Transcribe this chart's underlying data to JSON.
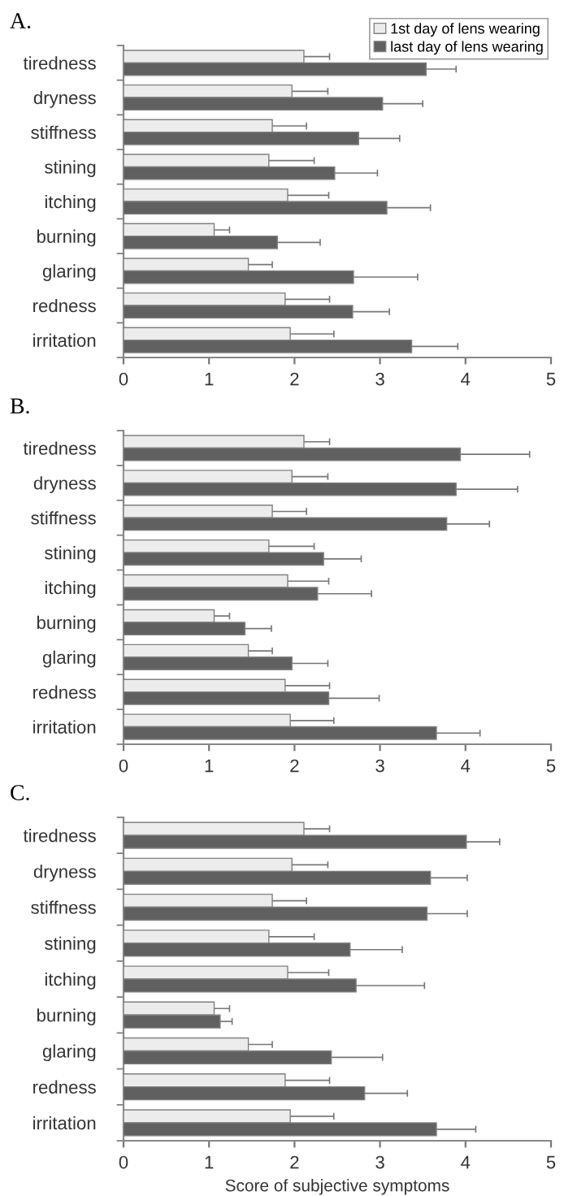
{
  "chart_data": [
    {
      "type": "bar",
      "orientation": "horizontal",
      "title": "A.",
      "categories": [
        "tiredness",
        "dryness",
        "stiffness",
        "stining",
        "itching",
        "burning",
        "glaring",
        "redness",
        "irritation"
      ],
      "xlim": [
        0,
        5
      ],
      "xticks": [
        0,
        1,
        2,
        3,
        4,
        5
      ],
      "grid": false,
      "legend": "top right",
      "series": [
        {
          "name": "1st day of lens wearing",
          "color": "#ececec",
          "values": [
            2.11,
            1.97,
            1.74,
            1.7,
            1.92,
            1.06,
            1.46,
            1.89,
            1.95
          ],
          "errors": [
            0.3,
            0.42,
            0.4,
            0.53,
            0.48,
            0.18,
            0.28,
            0.52,
            0.51
          ]
        },
        {
          "name": "last day of lens wearing",
          "color": "#606060",
          "values": [
            3.54,
            3.03,
            2.75,
            2.47,
            3.08,
            1.8,
            2.69,
            2.68,
            3.37
          ],
          "errors": [
            0.35,
            0.47,
            0.48,
            0.5,
            0.51,
            0.5,
            0.75,
            0.43,
            0.54
          ]
        }
      ]
    },
    {
      "type": "bar",
      "orientation": "horizontal",
      "title": "B.",
      "categories": [
        "tiredness",
        "dryness",
        "stiffness",
        "stining",
        "itching",
        "burning",
        "glaring",
        "redness",
        "irritation"
      ],
      "xlim": [
        0,
        5
      ],
      "xticks": [
        0,
        1,
        2,
        3,
        4,
        5
      ],
      "grid": false,
      "series": [
        {
          "color": "#ececec",
          "values": [
            2.11,
            1.97,
            1.74,
            1.7,
            1.92,
            1.06,
            1.46,
            1.89,
            1.95
          ],
          "errors": [
            0.3,
            0.42,
            0.4,
            0.53,
            0.48,
            0.18,
            0.28,
            0.52,
            0.51
          ]
        },
        {
          "color": "#606060",
          "values": [
            3.94,
            3.89,
            3.78,
            2.34,
            2.27,
            1.42,
            1.97,
            2.4,
            3.66
          ],
          "errors": [
            0.81,
            0.72,
            0.5,
            0.44,
            0.63,
            0.31,
            0.42,
            0.59,
            0.51
          ]
        }
      ]
    },
    {
      "type": "bar",
      "orientation": "horizontal",
      "title": "C.",
      "xlabel": "Score of subjective symptoms",
      "categories": [
        "tiredness",
        "dryness",
        "stiffness",
        "stining",
        "itching",
        "burning",
        "glaring",
        "redness",
        "irritation"
      ],
      "xlim": [
        0,
        5
      ],
      "xticks": [
        0,
        1,
        2,
        3,
        4,
        5
      ],
      "grid": false,
      "series": [
        {
          "color": "#ececec",
          "values": [
            2.11,
            1.97,
            1.74,
            1.7,
            1.92,
            1.06,
            1.46,
            1.89,
            1.95
          ],
          "errors": [
            0.3,
            0.42,
            0.4,
            0.53,
            0.48,
            0.18,
            0.28,
            0.52,
            0.51
          ]
        },
        {
          "color": "#606060",
          "values": [
            4.01,
            3.59,
            3.55,
            2.65,
            2.72,
            1.13,
            2.43,
            2.82,
            3.66
          ],
          "errors": [
            0.39,
            0.43,
            0.47,
            0.61,
            0.8,
            0.14,
            0.6,
            0.5,
            0.46
          ]
        }
      ]
    }
  ]
}
